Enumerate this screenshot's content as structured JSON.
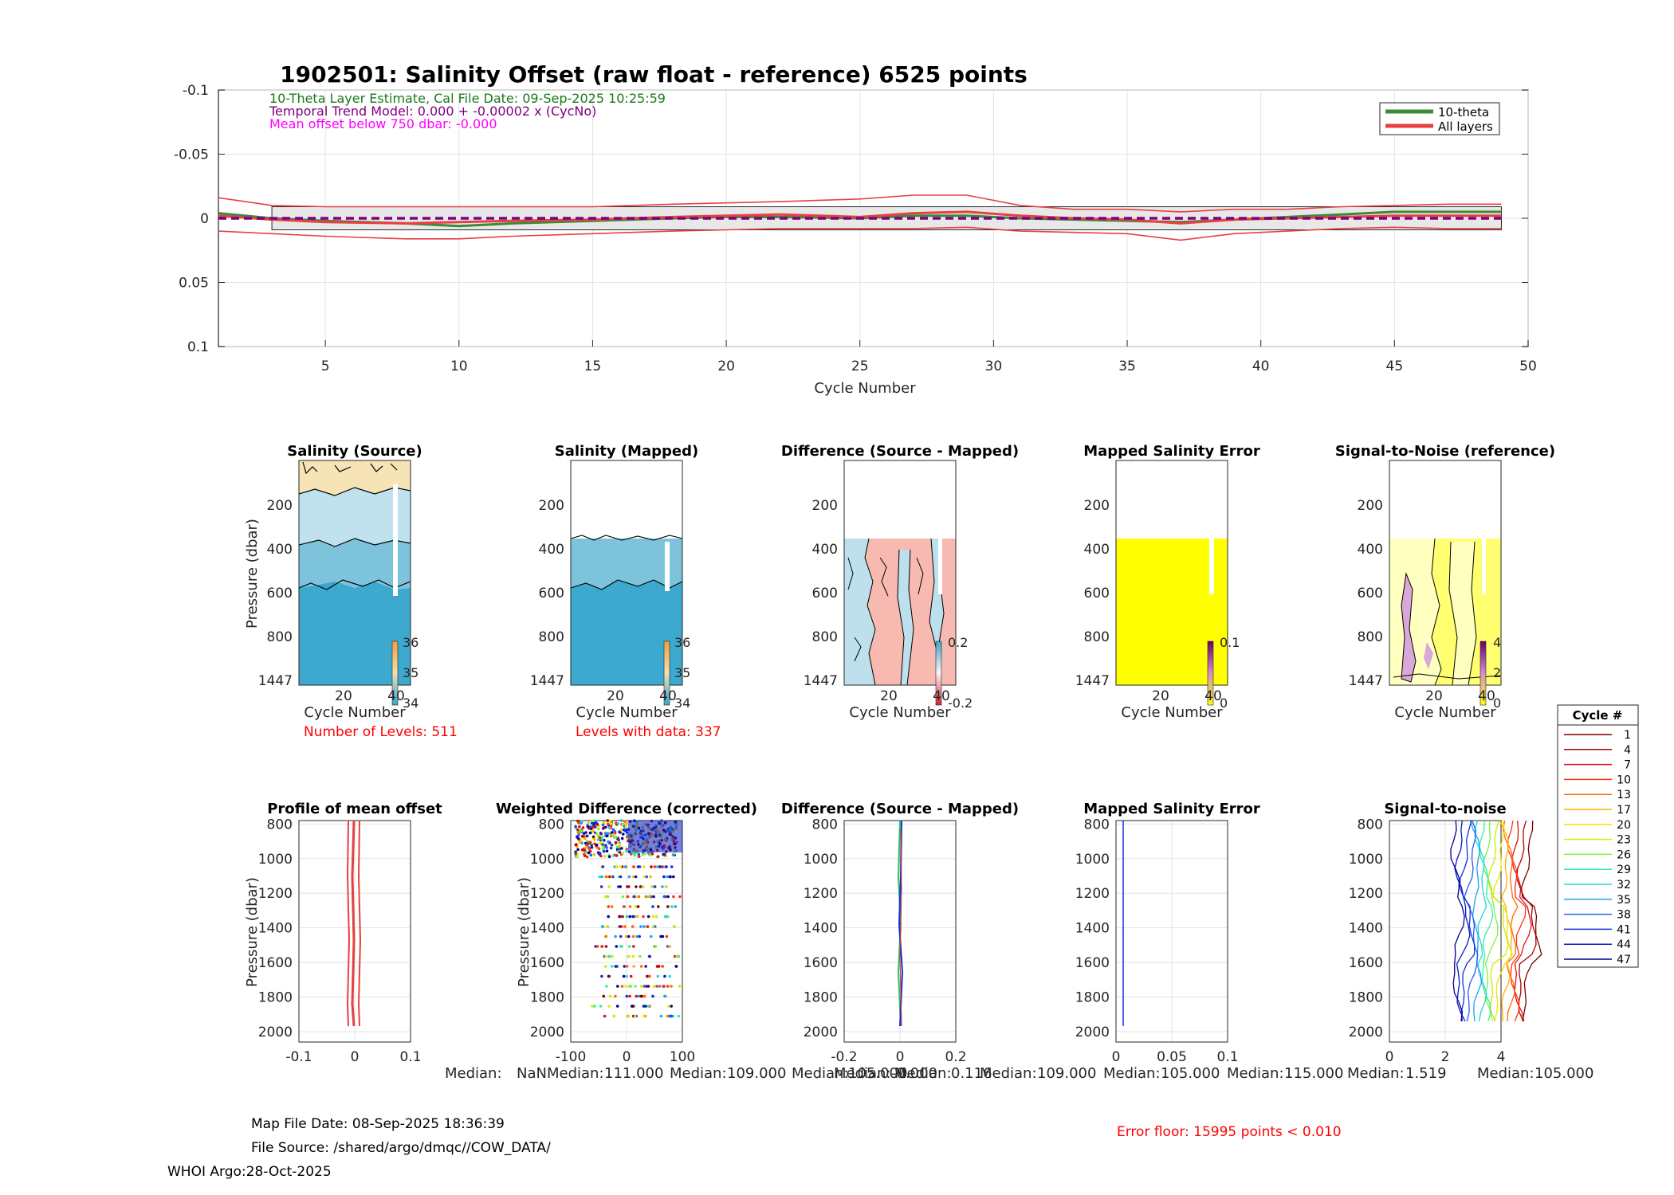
{
  "main": {
    "title": "1902501: Salinity Offset (raw float - reference)    6525 points",
    "annotations": [
      "10-Theta Layer Estimate, Cal File Date: 09-Sep-2025 10:25:59",
      "Temporal Trend Model: 0.000 + -0.00002 x (CycNo)",
      "Mean offset below 750 dbar: -0.000"
    ],
    "annotation_colors": [
      "#1a7a1a",
      "#800080",
      "#ff00ff"
    ],
    "xlabel": "Cycle Number",
    "xticks": [
      5,
      10,
      15,
      20,
      25,
      30,
      35,
      40,
      45,
      50
    ],
    "yticks": [
      -0.1,
      -0.05,
      0,
      0.05,
      0.1
    ],
    "ytick_labels": [
      "-0.1",
      "-0.05",
      "0",
      "0.05",
      "0.1"
    ],
    "legend": [
      "10-theta",
      "All layers"
    ],
    "legend_colors": [
      "#3a8a3a",
      "#e84040"
    ]
  },
  "panels": {
    "top": [
      {
        "title": "Salinity (Source)",
        "xlabel": "Cycle Number",
        "ylabel": "Pressure (dbar)",
        "yticks": [
          "200",
          "400",
          "600",
          "800",
          "1447"
        ],
        "xticks": [
          "20",
          "40"
        ],
        "colorbar": [
          "36",
          "35",
          "34"
        ],
        "note": "Number of Levels: 511"
      },
      {
        "title": "Salinity (Mapped)",
        "xlabel": "Cycle Number",
        "yticks": [
          "200",
          "400",
          "600",
          "800",
          "1447"
        ],
        "xticks": [
          "20",
          "40"
        ],
        "colorbar": [
          "36",
          "35",
          "34"
        ],
        "note": "Levels with data: 337"
      },
      {
        "title": "Difference (Source - Mapped)",
        "xlabel": "Cycle Number",
        "yticks": [
          "200",
          "400",
          "600",
          "800",
          "1447"
        ],
        "xticks": [
          "20",
          "40"
        ],
        "colorbar": [
          "0.2",
          "-0.2"
        ]
      },
      {
        "title": "Mapped Salinity Error",
        "xlabel": "Cycle Number",
        "yticks": [
          "200",
          "400",
          "600",
          "800",
          "1447"
        ],
        "xticks": [
          "20",
          "40"
        ],
        "colorbar": [
          "0.1",
          "0"
        ]
      },
      {
        "title": "Signal-to-Noise (reference)",
        "xlabel": "Cycle Number",
        "yticks": [
          "200",
          "400",
          "600",
          "800",
          "1447"
        ],
        "xticks": [
          "20",
          "40"
        ],
        "colorbar": [
          "4",
          "2",
          "0"
        ]
      }
    ],
    "bottom": [
      {
        "title": "Profile of mean offset",
        "ylabel": "Pressure (dbar)",
        "xticks": [
          "-0.1",
          "0",
          "0.1"
        ],
        "yticks": [
          "800",
          "1000",
          "1200",
          "1400",
          "1600",
          "1800",
          "2000"
        ]
      },
      {
        "title": "Weighted Difference (corrected)",
        "ylabel": "Pressure (dbar)",
        "xticks": [
          "-100",
          "0",
          "100"
        ],
        "yticks": [
          "800",
          "1000",
          "1200",
          "1400",
          "1600",
          "1800",
          "2000"
        ]
      },
      {
        "title": "Difference (Source - Mapped)",
        "xticks": [
          "-0.2",
          "0",
          "0.2"
        ],
        "yticks": [
          "800",
          "1000",
          "1200",
          "1400",
          "1600",
          "1800",
          "2000"
        ]
      },
      {
        "title": "Mapped Salinity Error",
        "xticks": [
          "0",
          "0.05",
          "0.1"
        ],
        "yticks": [
          "800",
          "1000",
          "1200",
          "1400",
          "1600",
          "1800",
          "2000"
        ]
      },
      {
        "title": "Signal-to-noise",
        "xticks": [
          "0",
          "2",
          "4"
        ],
        "yticks": [
          "800",
          "1000",
          "1200",
          "1400",
          "1600",
          "1800",
          "2000"
        ]
      }
    ]
  },
  "medians": [
    {
      "label": "Median:",
      "value": "NaN"
    },
    {
      "label": "Median:",
      "value": "111.000"
    },
    {
      "label": "Median:",
      "value": "109.000"
    },
    {
      "label": "Median:",
      "value": "105.000"
    },
    {
      "label": "Median:",
      "value": "-0.000"
    },
    {
      "label": "Median:",
      "value": "0.116"
    },
    {
      "label": "Median:",
      "value": "109.000"
    },
    {
      "label": "Median:",
      "value": "105.000"
    },
    {
      "label": "Median:",
      "value": "115.000"
    },
    {
      "label": "Median:",
      "value": "1.519"
    },
    {
      "label": "Median:",
      "value": "105.000"
    }
  ],
  "cycle_legend": {
    "title": "Cycle #",
    "cycles": [
      "1",
      "4",
      "7",
      "10",
      "13",
      "17",
      "20",
      "23",
      "26",
      "29",
      "32",
      "35",
      "38",
      "41",
      "44",
      "47"
    ],
    "colors": [
      "#7a0000",
      "#b00000",
      "#e01010",
      "#ff3010",
      "#ff6a00",
      "#ffb000",
      "#f2e200",
      "#c8f000",
      "#7cf040",
      "#30f0a0",
      "#20d8d0",
      "#20a0f0",
      "#2060f0",
      "#1030e0",
      "#0818c0",
      "#000090"
    ]
  },
  "footer": {
    "map_file_date": "Map File Date: 08-Sep-2025 18:36:39",
    "file_source": "File Source: /shared/argo/dmqc//COW_DATA/",
    "whoi": "WHOI Argo:28-Oct-2025",
    "error_floor": "Error floor: 15995 points < 0.010"
  },
  "chart_data": {
    "type": "line",
    "title": "1902501: Salinity Offset (raw float - reference)    6525 points",
    "xlabel": "Cycle Number",
    "ylabel": "",
    "xlim": [
      1,
      50
    ],
    "ylim": [
      -0.1,
      0.1
    ],
    "y_reversed": true,
    "x": [
      1,
      3,
      5,
      8,
      10,
      12,
      15,
      18,
      20,
      22,
      25,
      27,
      29,
      31,
      33,
      35,
      37,
      39,
      41,
      43,
      45,
      47,
      49
    ],
    "series": [
      {
        "name": "10-theta",
        "color": "#3a8a3a",
        "values": [
          -0.004,
          0.0,
          0.002,
          0.004,
          0.006,
          0.004,
          0.002,
          0.0,
          -0.001,
          -0.001,
          0.0,
          -0.002,
          -0.002,
          0.0,
          0.001,
          0.002,
          0.003,
          0.001,
          -0.001,
          -0.003,
          -0.005,
          -0.005,
          -0.005
        ]
      },
      {
        "name": "All layers",
        "color": "#e84040",
        "values": [
          -0.002,
          0.001,
          0.003,
          0.004,
          0.003,
          0.002,
          0.001,
          -0.001,
          -0.002,
          -0.003,
          -0.001,
          -0.004,
          -0.005,
          -0.002,
          0.0,
          0.001,
          0.004,
          0.001,
          0.0,
          -0.001,
          -0.002,
          -0.002,
          -0.002
        ]
      },
      {
        "name": "All layers upper bound",
        "color": "#e84040",
        "values": [
          -0.016,
          -0.01,
          -0.009,
          -0.009,
          -0.009,
          -0.009,
          -0.009,
          -0.011,
          -0.012,
          -0.013,
          -0.015,
          -0.018,
          -0.018,
          -0.01,
          -0.007,
          -0.007,
          -0.005,
          -0.007,
          -0.007,
          -0.009,
          -0.01,
          -0.011,
          -0.011
        ]
      },
      {
        "name": "All layers lower bound",
        "color": "#e84040",
        "values": [
          0.01,
          0.012,
          0.014,
          0.016,
          0.016,
          0.014,
          0.012,
          0.01,
          0.009,
          0.008,
          0.008,
          0.008,
          0.007,
          0.01,
          0.011,
          0.012,
          0.017,
          0.012,
          0.01,
          0.008,
          0.007,
          0.008,
          0.008
        ]
      },
      {
        "name": "Temporal trend",
        "color": "#800080",
        "values": [
          0.0,
          0.0,
          0.0,
          0.0,
          0.0,
          0.0,
          0.0,
          0.0,
          0.0,
          0.0,
          0.0,
          0.0,
          0.0,
          0.0,
          0.0,
          0.0,
          0.0,
          0.0,
          0.0,
          0.0,
          0.0,
          0.0,
          0.0
        ]
      }
    ],
    "error_band": {
      "lower": -0.009,
      "upper": 0.009
    },
    "legend_position": "top-right"
  }
}
